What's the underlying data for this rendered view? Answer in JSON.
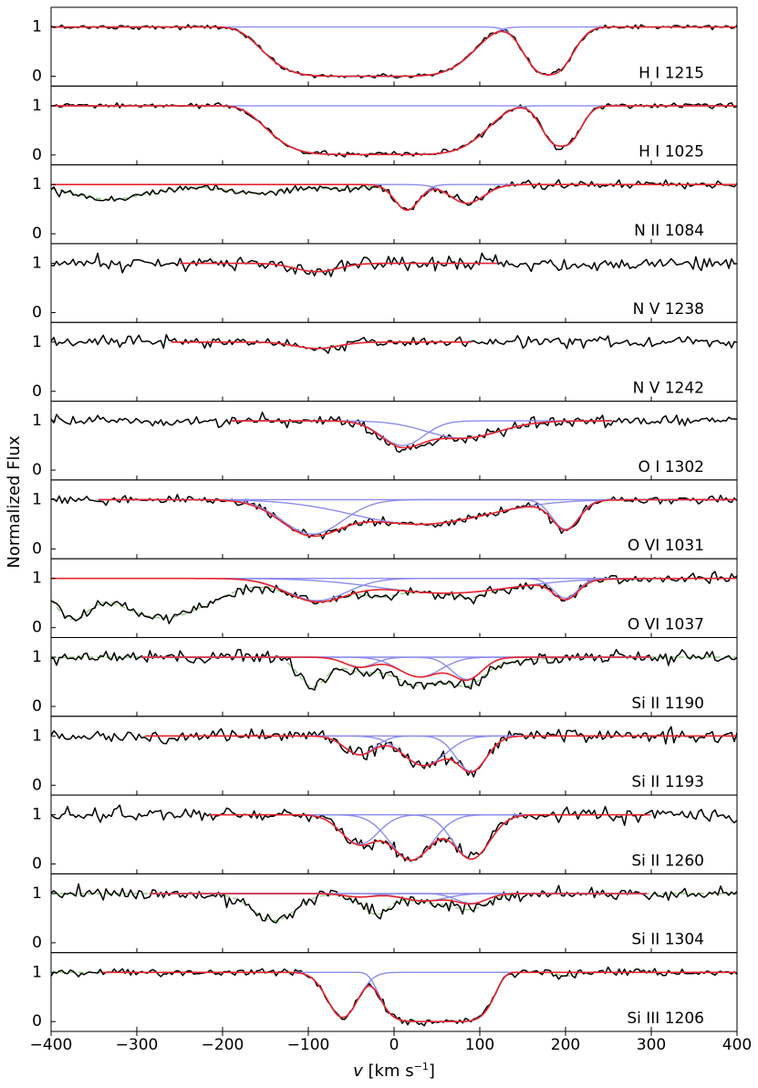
{
  "figure": {
    "ylabel": "Normalized Flux",
    "xlabel_var": "v",
    "xlabel_unit_pre": "[km s",
    "xlabel_unit_sup": "−1",
    "xlabel_unit_post": "]"
  },
  "chart_data": {
    "type": "line",
    "xlim": [
      -400,
      400
    ],
    "xticks": [
      -400,
      -300,
      -200,
      -100,
      0,
      100,
      200,
      300,
      400
    ],
    "xtick_labels": [
      "−400",
      "−300",
      "−200",
      "−100",
      "0",
      "100",
      "200",
      "300",
      "400"
    ],
    "yticks": [
      0,
      1
    ],
    "ylim": [
      -0.2,
      1.4
    ],
    "colors": {
      "data": "#000000",
      "total_fit": "#e8242c",
      "components": "#8c8cef",
      "contaminant": "#8fce78"
    },
    "panels": [
      {
        "label": "H I 1215",
        "fit_range": [
          -400,
          400
        ],
        "components": [
          {
            "v": -30,
            "depth": 1.0,
            "b": 130,
            "sharp": 3
          },
          {
            "v": 180,
            "depth": 0.97,
            "b": 35,
            "sharp": 1.3
          }
        ],
        "noise": 0.022,
        "contaminants": []
      },
      {
        "label": "H I 1025",
        "fit_range": [
          -400,
          400
        ],
        "components": [
          {
            "v": -20,
            "depth": 0.99,
            "b": 135,
            "sharp": 3
          },
          {
            "v": 195,
            "depth": 0.82,
            "b": 28,
            "sharp": 1.3
          }
        ],
        "noise": 0.025,
        "contaminants": []
      },
      {
        "label": "N II 1084",
        "fit_range": [
          -400,
          400
        ],
        "components": [
          {
            "v": 15,
            "depth": 0.52,
            "b": 20,
            "sharp": 1
          },
          {
            "v": 85,
            "depth": 0.38,
            "b": 28,
            "sharp": 1
          }
        ],
        "noise": 0.04,
        "contaminants": [
          {
            "v": -330,
            "depth": 0.3,
            "b": 60
          },
          {
            "v": -160,
            "depth": 0.17,
            "b": 55
          },
          {
            "v": -60,
            "depth": 0.08,
            "b": 40
          }
        ]
      },
      {
        "label": "N V 1238",
        "fit_range": [
          -250,
          120
        ],
        "components": [
          {
            "v": -90,
            "depth": 0.17,
            "b": 35,
            "sharp": 1
          }
        ],
        "noise": 0.07,
        "contaminants": []
      },
      {
        "label": "N V 1242",
        "fit_range": [
          -260,
          90
        ],
        "components": [
          {
            "v": -90,
            "depth": 0.13,
            "b": 35,
            "sharp": 1
          }
        ],
        "noise": 0.055,
        "contaminants": []
      },
      {
        "label": "O I 1302",
        "fit_range": [
          -190,
          255
        ],
        "components": [
          {
            "v": 10,
            "depth": 0.5,
            "b": 35,
            "sharp": 1
          },
          {
            "v": 80,
            "depth": 0.35,
            "b": 60,
            "sharp": 1
          }
        ],
        "noise": 0.06,
        "contaminants": []
      },
      {
        "label": "O VI 1031",
        "fit_range": [
          -345,
          400
        ],
        "components": [
          {
            "v": -95,
            "depth": 0.7,
            "b": 50,
            "sharp": 1
          },
          {
            "v": 30,
            "depth": 0.5,
            "b": 110,
            "sharp": 1
          },
          {
            "v": 200,
            "depth": 0.6,
            "b": 22,
            "sharp": 1
          }
        ],
        "noise": 0.045,
        "contaminants": []
      },
      {
        "label": "O VI 1037",
        "fit_range": [
          -400,
          400
        ],
        "components": [
          {
            "v": -90,
            "depth": 0.45,
            "b": 50,
            "sharp": 1
          },
          {
            "v": 60,
            "depth": 0.3,
            "b": 110,
            "sharp": 1
          },
          {
            "v": 200,
            "depth": 0.4,
            "b": 20,
            "sharp": 1
          }
        ],
        "noise": 0.05,
        "contaminants": [
          {
            "v": -375,
            "depth": 0.8,
            "b": 30
          },
          {
            "v": -270,
            "depth": 0.8,
            "b": 80
          },
          {
            "v": -15,
            "depth": 0.2,
            "b": 25
          },
          {
            "v": 90,
            "depth": 0.15,
            "b": 25
          }
        ]
      },
      {
        "label": "Si II 1190",
        "fit_range": [
          -295,
          300
        ],
        "components": [
          {
            "v": -40,
            "depth": 0.2,
            "b": 25,
            "sharp": 1
          },
          {
            "v": 30,
            "depth": 0.4,
            "b": 35,
            "sharp": 1
          },
          {
            "v": 85,
            "depth": 0.45,
            "b": 25,
            "sharp": 1
          }
        ],
        "noise": 0.065,
        "contaminants": [
          {
            "v": -95,
            "depth": 0.6,
            "b": 22
          },
          {
            "v": 40,
            "depth": 0.3,
            "b": 90
          }
        ]
      },
      {
        "label": "Si II 1193",
        "fit_range": [
          -290,
          400
        ],
        "components": [
          {
            "v": -40,
            "depth": 0.38,
            "b": 25,
            "sharp": 1
          },
          {
            "v": 35,
            "depth": 0.6,
            "b": 35,
            "sharp": 1
          },
          {
            "v": 90,
            "depth": 0.72,
            "b": 25,
            "sharp": 1
          }
        ],
        "noise": 0.065,
        "contaminants": []
      },
      {
        "label": "Si II 1260",
        "fit_range": [
          -215,
          300
        ],
        "components": [
          {
            "v": -40,
            "depth": 0.6,
            "b": 30,
            "sharp": 1
          },
          {
            "v": 20,
            "depth": 0.92,
            "b": 35,
            "sharp": 1
          },
          {
            "v": 90,
            "depth": 0.9,
            "b": 30,
            "sharp": 1
          }
        ],
        "noise": 0.065,
        "contaminants": []
      },
      {
        "label": "Si II 1304",
        "fit_range": [
          -285,
          295
        ],
        "components": [
          {
            "v": -40,
            "depth": 0.07,
            "b": 25,
            "sharp": 1
          },
          {
            "v": 35,
            "depth": 0.15,
            "b": 35,
            "sharp": 1
          },
          {
            "v": 90,
            "depth": 0.2,
            "b": 25,
            "sharp": 1
          }
        ],
        "noise": 0.065,
        "contaminants": [
          {
            "v": -140,
            "depth": 0.55,
            "b": 35
          },
          {
            "v": -20,
            "depth": 0.4,
            "b": 20
          },
          {
            "v": 80,
            "depth": 0.15,
            "b": 40
          }
        ]
      },
      {
        "label": "Si III 1206",
        "fit_range": [
          -340,
          400
        ],
        "components": [
          {
            "v": -60,
            "depth": 0.92,
            "b": 25,
            "sharp": 1
          },
          {
            "v": 50,
            "depth": 1.0,
            "b": 70,
            "sharp": 3.5
          }
        ],
        "noise": 0.035,
        "contaminants": [
          {
            "v": 200,
            "depth": 0.08,
            "b": 12
          }
        ]
      }
    ]
  }
}
